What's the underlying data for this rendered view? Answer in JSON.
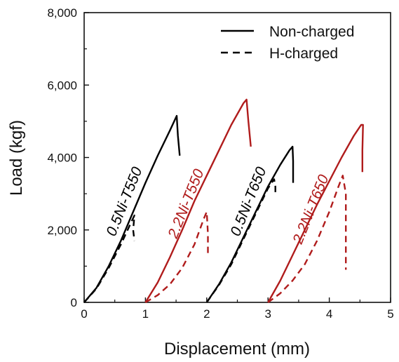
{
  "chart_data": {
    "type": "line",
    "xlabel": "Displacement (mm)",
    "ylabel": "Load (kgf)",
    "xlim": [
      0,
      5
    ],
    "ylim": [
      0,
      8000
    ],
    "x_ticks": [
      "0",
      "1",
      "2",
      "3",
      "4",
      "5"
    ],
    "y_ticks": [
      "0",
      "2,000",
      "4,000",
      "6,000",
      "8,000"
    ],
    "grid": false,
    "legend": {
      "placement": "top-right",
      "entries": [
        {
          "label": "Non-charged",
          "style": "solid"
        },
        {
          "label": "H-charged",
          "style": "dashed"
        }
      ]
    },
    "series": [
      {
        "name": "0.5Ni-T550",
        "color": "#000000",
        "non_charged": [
          [
            0.0,
            0
          ],
          [
            0.2,
            400
          ],
          [
            0.4,
            1000
          ],
          [
            0.6,
            1700
          ],
          [
            0.8,
            2500
          ],
          [
            1.0,
            3300
          ],
          [
            1.2,
            4050
          ],
          [
            1.4,
            4750
          ],
          [
            1.51,
            5150
          ],
          [
            1.53,
            4600
          ],
          [
            1.56,
            4050
          ]
        ],
        "h_charged": [
          [
            0.0,
            0
          ],
          [
            0.2,
            380
          ],
          [
            0.4,
            950
          ],
          [
            0.6,
            1600
          ],
          [
            0.75,
            2150
          ],
          [
            0.82,
            2400
          ],
          [
            0.8,
            2000
          ],
          [
            0.82,
            1700
          ]
        ],
        "h_fracture_mark": [
          [
            0.82,
            1700
          ],
          [
            0.82,
            1650
          ]
        ]
      },
      {
        "name": "2.2Ni-T550",
        "color": "#b01c1c",
        "non_charged": [
          [
            1.0,
            0
          ],
          [
            1.2,
            550
          ],
          [
            1.4,
            1250
          ],
          [
            1.6,
            2000
          ],
          [
            1.8,
            2800
          ],
          [
            2.0,
            3500
          ],
          [
            2.2,
            4200
          ],
          [
            2.4,
            4900
          ],
          [
            2.6,
            5500
          ],
          [
            2.65,
            5600
          ],
          [
            2.68,
            5000
          ],
          [
            2.72,
            4300
          ]
        ],
        "h_charged": [
          [
            1.0,
            0
          ],
          [
            1.2,
            200
          ],
          [
            1.4,
            500
          ],
          [
            1.6,
            950
          ],
          [
            1.8,
            1600
          ],
          [
            1.95,
            2300
          ],
          [
            2.0,
            2500
          ],
          [
            2.02,
            1900
          ],
          [
            2.02,
            1300
          ]
        ]
      },
      {
        "name": "0.5Ni-T650",
        "color": "#000000",
        "non_charged": [
          [
            2.0,
            0
          ],
          [
            2.2,
            500
          ],
          [
            2.4,
            1100
          ],
          [
            2.6,
            1800
          ],
          [
            2.8,
            2500
          ],
          [
            3.0,
            3200
          ],
          [
            3.2,
            3800
          ],
          [
            3.35,
            4200
          ],
          [
            3.4,
            4300
          ],
          [
            3.41,
            3900
          ],
          [
            3.41,
            3300
          ]
        ],
        "h_charged": [
          [
            2.0,
            0
          ],
          [
            2.2,
            480
          ],
          [
            2.4,
            1050
          ],
          [
            2.6,
            1750
          ],
          [
            2.8,
            2450
          ],
          [
            3.0,
            3150
          ],
          [
            3.1,
            3400
          ],
          [
            3.12,
            3200
          ],
          [
            3.12,
            3000
          ]
        ]
      },
      {
        "name": "2.2Ni-T650",
        "color": "#b01c1c",
        "non_charged": [
          [
            3.0,
            0
          ],
          [
            3.2,
            600
          ],
          [
            3.4,
            1300
          ],
          [
            3.6,
            2000
          ],
          [
            3.8,
            2700
          ],
          [
            4.0,
            3350
          ],
          [
            4.2,
            4000
          ],
          [
            4.4,
            4600
          ],
          [
            4.52,
            4900
          ],
          [
            4.55,
            4900
          ],
          [
            4.54,
            4200
          ],
          [
            4.54,
            3600
          ]
        ],
        "h_charged": [
          [
            3.0,
            0
          ],
          [
            3.2,
            250
          ],
          [
            3.4,
            600
          ],
          [
            3.6,
            1050
          ],
          [
            3.8,
            1700
          ],
          [
            4.0,
            2500
          ],
          [
            4.15,
            3200
          ],
          [
            4.22,
            3500
          ],
          [
            4.27,
            3000
          ],
          [
            4.27,
            1700
          ],
          [
            4.27,
            900
          ]
        ]
      }
    ]
  }
}
